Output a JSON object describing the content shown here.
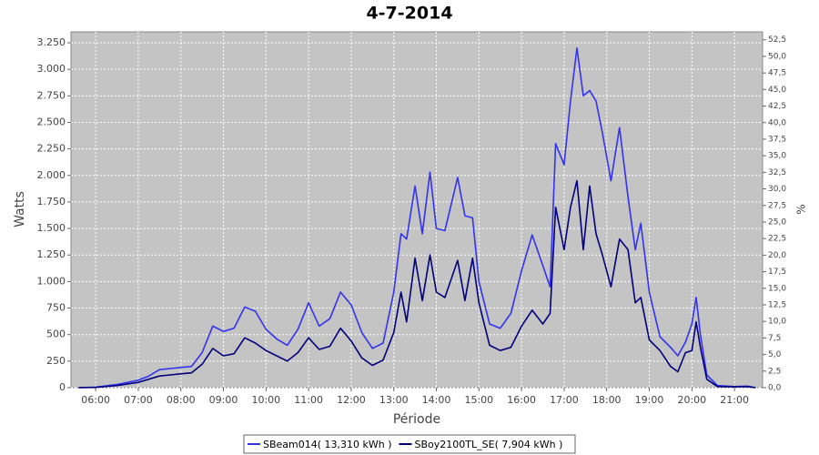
{
  "chart_data": {
    "type": "line",
    "title": "4-7-2014",
    "x_label": "Période",
    "y_label": "Watts",
    "y2_label": "%",
    "x": [
      5.6,
      6.0,
      6.5,
      7.0,
      7.25,
      7.5,
      7.75,
      8.0,
      8.25,
      8.5,
      8.75,
      9.0,
      9.25,
      9.5,
      9.75,
      10.0,
      10.25,
      10.5,
      10.75,
      11.0,
      11.25,
      11.5,
      11.75,
      12.0,
      12.25,
      12.5,
      12.75,
      13.0,
      13.17,
      13.3,
      13.5,
      13.67,
      13.85,
      14.0,
      14.2,
      14.5,
      14.67,
      14.85,
      15.0,
      15.25,
      15.5,
      15.75,
      16.0,
      16.25,
      16.5,
      16.67,
      16.8,
      17.0,
      17.15,
      17.3,
      17.45,
      17.6,
      17.75,
      17.9,
      18.1,
      18.3,
      18.5,
      18.67,
      18.8,
      19.0,
      19.25,
      19.5,
      19.67,
      19.85,
      20.0,
      20.1,
      20.2,
      20.35,
      20.6,
      21.0,
      21.3,
      21.5
    ],
    "series": [
      {
        "name": "SBeam014( 13,310 kWh )",
        "color": "#3232f0",
        "values": [
          0,
          5,
          30,
          70,
          110,
          170,
          180,
          190,
          200,
          330,
          580,
          530,
          560,
          760,
          720,
          550,
          460,
          400,
          550,
          800,
          580,
          650,
          900,
          780,
          520,
          370,
          420,
          900,
          1450,
          1400,
          1900,
          1450,
          2030,
          1500,
          1480,
          1980,
          1620,
          1600,
          1000,
          600,
          560,
          700,
          1100,
          1440,
          1150,
          950,
          2300,
          2100,
          2700,
          3200,
          2750,
          2800,
          2700,
          2400,
          1950,
          2450,
          1800,
          1300,
          1550,
          900,
          480,
          380,
          300,
          430,
          600,
          850,
          500,
          120,
          20,
          10,
          15,
          0
        ]
      },
      {
        "name": "SBoy2100TL_SE( 7,904 kWh )",
        "color": "#00007a",
        "values": [
          0,
          3,
          20,
          50,
          80,
          110,
          120,
          130,
          140,
          220,
          370,
          300,
          320,
          470,
          420,
          350,
          300,
          250,
          330,
          470,
          360,
          390,
          560,
          440,
          280,
          210,
          260,
          520,
          900,
          620,
          1220,
          820,
          1250,
          900,
          850,
          1200,
          820,
          1220,
          800,
          400,
          350,
          380,
          580,
          730,
          600,
          700,
          1700,
          1300,
          1700,
          1950,
          1300,
          1900,
          1450,
          1250,
          950,
          1400,
          1300,
          800,
          850,
          450,
          350,
          200,
          150,
          330,
          350,
          620,
          380,
          80,
          10,
          8,
          10,
          0
        ]
      }
    ],
    "xlim": [
      5.42,
      21.66
    ],
    "xticks": [
      {
        "value": 6,
        "label": "06:00"
      },
      {
        "value": 7,
        "label": "07:00"
      },
      {
        "value": 8,
        "label": "08:00"
      },
      {
        "value": 9,
        "label": "09:00"
      },
      {
        "value": 10,
        "label": "10:00"
      },
      {
        "value": 11,
        "label": "11:00"
      },
      {
        "value": 12,
        "label": "12:00"
      },
      {
        "value": 13,
        "label": "13:00"
      },
      {
        "value": 14,
        "label": "14:00"
      },
      {
        "value": 15,
        "label": "15:00"
      },
      {
        "value": 16,
        "label": "16:00"
      },
      {
        "value": 17,
        "label": "17:00"
      },
      {
        "value": 18,
        "label": "18:00"
      },
      {
        "value": 19,
        "label": "19:00"
      },
      {
        "value": 20,
        "label": "20:00"
      },
      {
        "value": 21,
        "label": "21:00"
      }
    ],
    "ylim": [
      0,
      3353
    ],
    "yticks": [
      0,
      250,
      500,
      750,
      {
        "value": 1000,
        "label": "1.000"
      },
      {
        "value": 1250,
        "label": "1.250"
      },
      {
        "value": 1500,
        "label": "1.500"
      },
      {
        "value": 1750,
        "label": "1.750"
      },
      {
        "value": 2000,
        "label": "2.000"
      },
      {
        "value": 2250,
        "label": "2.250"
      },
      {
        "value": 2500,
        "label": "2.500"
      },
      {
        "value": 2750,
        "label": "2.750"
      },
      {
        "value": 3000,
        "label": "3.000"
      },
      {
        "value": 3250,
        "label": "3.250"
      }
    ],
    "y2lim": [
      0,
      53.7
    ],
    "y2ticks": [
      {
        "value": 0,
        "label": "0,0"
      },
      {
        "value": 2.5,
        "label": "2,5"
      },
      {
        "value": 5,
        "label": "5,0"
      },
      {
        "value": 7.5,
        "label": "7,5"
      },
      {
        "value": 10,
        "label": "10,0"
      },
      {
        "value": 12.5,
        "label": "12,5"
      },
      {
        "value": 15,
        "label": "15,0"
      },
      {
        "value": 17.5,
        "label": "17,5"
      },
      {
        "value": 20,
        "label": "20,0"
      },
      {
        "value": 22.5,
        "label": "22,5"
      },
      {
        "value": 25,
        "label": "25,0"
      },
      {
        "value": 27.5,
        "label": "27,5"
      },
      {
        "value": 30,
        "label": "30,0"
      },
      {
        "value": 32.5,
        "label": "32,5"
      },
      {
        "value": 35,
        "label": "35,0"
      },
      {
        "value": 37.5,
        "label": "37,5"
      },
      {
        "value": 40,
        "label": "40,0"
      },
      {
        "value": 42.5,
        "label": "42,5"
      },
      {
        "value": 45,
        "label": "45,0"
      },
      {
        "value": 47.5,
        "label": "47,5"
      },
      {
        "value": 50,
        "label": "50,0"
      },
      {
        "value": 52.5,
        "label": "52,5"
      }
    ],
    "grid": true,
    "legend": "bottom"
  }
}
